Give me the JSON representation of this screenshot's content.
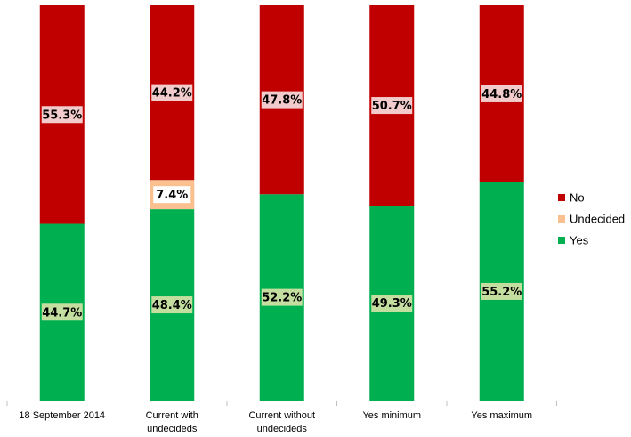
{
  "chart_data": {
    "type": "bar",
    "stacked": true,
    "normalized": true,
    "categories": [
      [
        "18 September 2014"
      ],
      [
        "Current with",
        "undecideds"
      ],
      [
        "Current without",
        "undecideds"
      ],
      [
        "Yes minimum"
      ],
      [
        "Yes maximum"
      ]
    ],
    "series": [
      {
        "name": "Yes",
        "color": "#00B050",
        "label_bg": "#C4DE9F",
        "values": [
          44.7,
          48.4,
          52.2,
          49.3,
          55.2
        ],
        "labels": [
          "44.7%",
          "48.4%",
          "52.2%",
          "49.3%",
          "55.2%"
        ]
      },
      {
        "name": "Undecided",
        "color": "#FAC090",
        "label_bg": "#FDE6D4",
        "values": [
          0,
          7.4,
          0,
          0,
          0
        ],
        "labels": [
          "",
          "7.4%",
          "",
          "",
          ""
        ]
      },
      {
        "name": "No",
        "color": "#C00000",
        "label_bg": "#F2CCCC",
        "values": [
          55.3,
          44.2,
          47.8,
          50.7,
          44.8
        ],
        "labels": [
          "55.3%",
          "44.2%",
          "47.8%",
          "50.7%",
          "44.8%"
        ]
      }
    ],
    "legend_order": [
      "No",
      "Undecided",
      "Yes"
    ],
    "legend_position": "right",
    "ylim": [
      0,
      100
    ],
    "grid": false,
    "title": "",
    "xlabel": "",
    "ylabel": ""
  }
}
